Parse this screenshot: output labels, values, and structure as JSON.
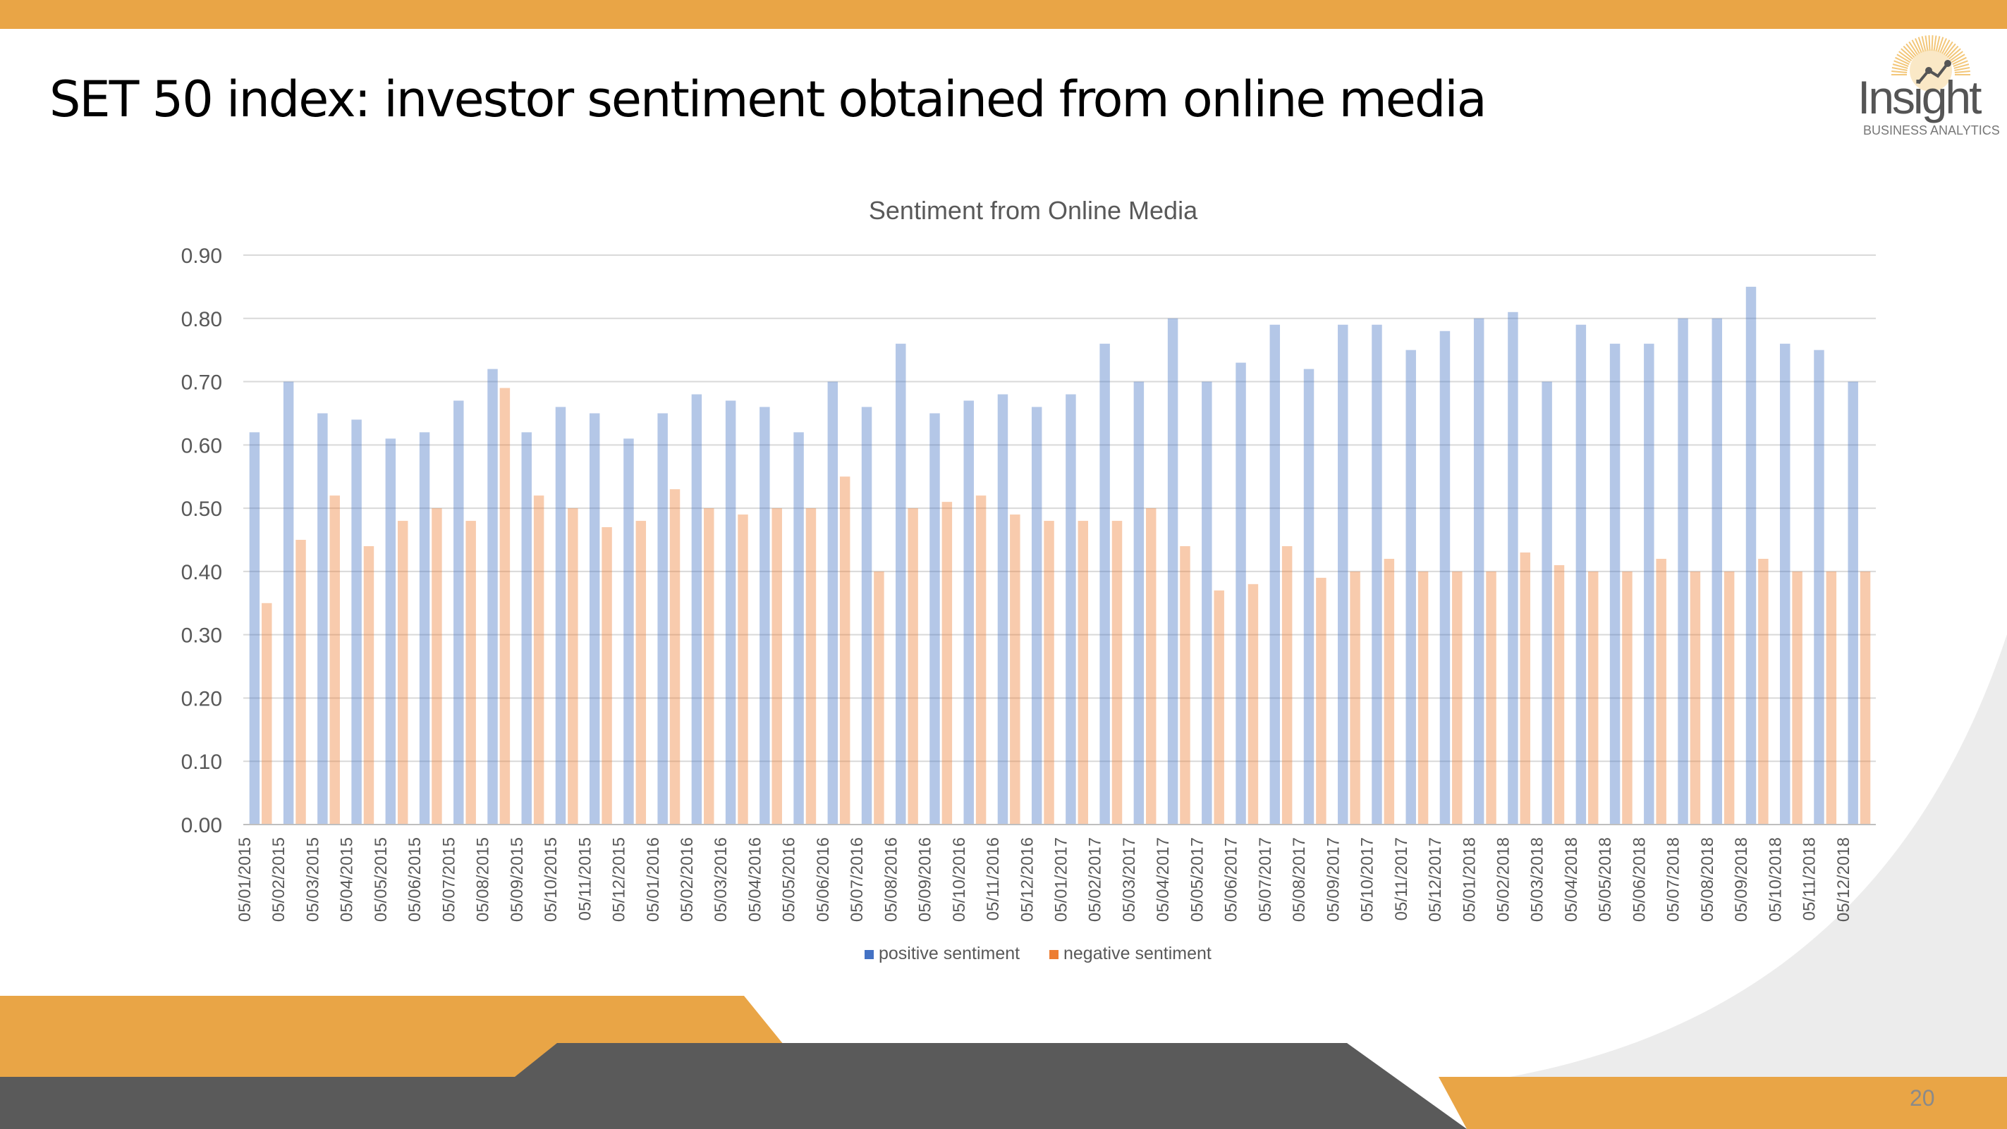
{
  "slide": {
    "title": "SET 50 index: investor sentiment obtained from online media",
    "page_number": "20",
    "logo": {
      "word": "Insight",
      "subtitle": "BUSINESS ANALYTICS"
    },
    "accent_color": "#E9A546",
    "dark_color": "#5A5A5A"
  },
  "chart_data": {
    "type": "bar",
    "title": "Sentiment from Online Media",
    "xlabel": "",
    "ylabel": "",
    "ylim": [
      0,
      0.9
    ],
    "yticks": [
      "0.00",
      "0.10",
      "0.20",
      "0.30",
      "0.40",
      "0.50",
      "0.60",
      "0.70",
      "0.80",
      "0.90"
    ],
    "grid": true,
    "legend_position": "bottom",
    "categories": [
      "05/01/2015",
      "05/02/2015",
      "05/03/2015",
      "05/04/2015",
      "05/05/2015",
      "05/06/2015",
      "05/07/2015",
      "05/08/2015",
      "05/09/2015",
      "05/10/2015",
      "05/11/2015",
      "05/12/2015",
      "05/01/2016",
      "05/02/2016",
      "05/03/2016",
      "05/04/2016",
      "05/05/2016",
      "05/06/2016",
      "05/07/2016",
      "05/08/2016",
      "05/09/2016",
      "05/10/2016",
      "05/11/2016",
      "05/12/2016",
      "05/01/2017",
      "05/02/2017",
      "05/03/2017",
      "05/04/2017",
      "05/05/2017",
      "05/06/2017",
      "05/07/2017",
      "05/08/2017",
      "05/09/2017",
      "05/10/2017",
      "05/11/2017",
      "05/12/2017",
      "05/01/2018",
      "05/02/2018",
      "05/03/2018",
      "05/04/2018",
      "05/05/2018",
      "05/06/2018",
      "05/07/2018",
      "05/08/2018",
      "05/09/2018",
      "05/10/2018",
      "05/11/2018",
      "05/12/2018"
    ],
    "series": [
      {
        "name": "positive sentiment",
        "color": "#4472C4",
        "values": [
          0.62,
          0.7,
          0.65,
          0.64,
          0.61,
          0.62,
          0.67,
          0.72,
          0.62,
          0.66,
          0.65,
          0.61,
          0.65,
          0.68,
          0.67,
          0.66,
          0.62,
          0.7,
          0.66,
          0.76,
          0.65,
          0.67,
          0.68,
          0.66,
          0.68,
          0.76,
          0.7,
          0.8,
          0.7,
          0.73,
          0.79,
          0.72,
          0.79,
          0.79,
          0.75,
          0.78,
          0.8,
          0.81,
          0.7,
          0.79,
          0.76,
          0.76,
          0.8,
          0.8,
          0.85,
          0.76,
          0.75,
          0.7
        ]
      },
      {
        "name": "negative sentiment",
        "color": "#ED7D31",
        "values": [
          0.35,
          0.45,
          0.52,
          0.44,
          0.48,
          0.5,
          0.48,
          0.69,
          0.52,
          0.5,
          0.47,
          0.48,
          0.53,
          0.5,
          0.49,
          0.5,
          0.5,
          0.55,
          0.4,
          0.5,
          0.51,
          0.52,
          0.49,
          0.48,
          0.48,
          0.48,
          0.5,
          0.44,
          0.37,
          0.38,
          0.44,
          0.39,
          0.4,
          0.42,
          0.4,
          0.4,
          0.4,
          0.43,
          0.41,
          0.4,
          0.4,
          0.42,
          0.4,
          0.4,
          0.42,
          0.4,
          0.4,
          0.4
        ]
      }
    ]
  }
}
